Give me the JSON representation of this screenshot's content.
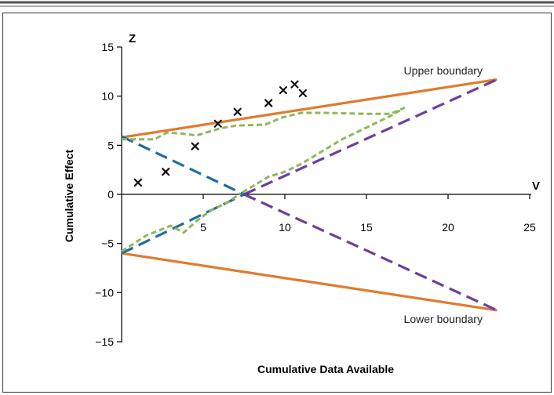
{
  "chart_data": {
    "type": "line",
    "title": "",
    "xlabel": "Cumulative Data Available",
    "ylabel": "Cumulative Effect",
    "x_axis_letter": "V",
    "y_axis_letter": "Z",
    "xlim": [
      0,
      25
    ],
    "ylim": [
      -15,
      15
    ],
    "x_ticks": [
      5,
      10,
      15,
      20,
      25
    ],
    "y_ticks": [
      15,
      10,
      5,
      0,
      -5,
      -10,
      -15
    ],
    "x_tick_labels": [
      "5",
      "10",
      "15",
      "20",
      "25"
    ],
    "y_tick_labels": [
      "15",
      "10",
      "5",
      "0",
      "−5",
      "−10",
      "−15"
    ],
    "grid": false,
    "legend": "none",
    "annotations": [
      {
        "text": "Upper boundary",
        "x": 19.7,
        "y": 12.6
      },
      {
        "text": "Lower boundary",
        "x": 19.7,
        "y": -12.7
      }
    ],
    "colors": {
      "boundary": "#e07b2e",
      "blue_dashed": "#1f6e9e",
      "purple_dashed": "#6b3fa0",
      "green_dotted": "#8db85a",
      "marker": "#111111",
      "axis": "#000000",
      "frame": "#555555"
    },
    "series": [
      {
        "style": "solid",
        "color_key": "boundary",
        "x": [
          0,
          23
        ],
        "y": [
          5.8,
          11.7
        ]
      },
      {
        "style": "solid",
        "color_key": "boundary",
        "x": [
          0,
          23
        ],
        "y": [
          -6.0,
          -11.8
        ]
      },
      {
        "style": "dashed",
        "color_key": "blue_dashed",
        "x": [
          0,
          7.5
        ],
        "y": [
          5.9,
          0
        ]
      },
      {
        "style": "dashed",
        "color_key": "blue_dashed",
        "x": [
          0,
          7.5
        ],
        "y": [
          -6.0,
          0
        ]
      },
      {
        "style": "dashed",
        "color_key": "purple_dashed",
        "x": [
          7.5,
          23
        ],
        "y": [
          0,
          11.7
        ]
      },
      {
        "style": "dashed",
        "color_key": "purple_dashed",
        "x": [
          7.5,
          23
        ],
        "y": [
          0,
          -11.8
        ]
      },
      {
        "style": "dotted",
        "color_key": "green_dotted",
        "x": [
          0,
          2.0,
          2.8,
          3.6,
          4.6,
          6.0,
          7.0,
          8.8,
          9.8,
          11.0,
          12.5,
          15.0,
          16.5,
          17.3,
          16.5,
          13.5,
          11.0,
          10.0,
          9.0,
          8.0,
          7.3
        ],
        "y": [
          5.6,
          5.6,
          6.3,
          6.2,
          6.0,
          6.7,
          7.0,
          7.1,
          7.8,
          8.3,
          8.3,
          8.2,
          8.2,
          8.8,
          8.0,
          5.6,
          3.1,
          2.3,
          1.8,
          0.8,
          0.1
        ]
      },
      {
        "style": "dotted",
        "color_key": "green_dotted",
        "x": [
          0,
          1.5,
          3.0,
          3.8,
          4.6,
          5.5,
          6.5,
          7.3
        ],
        "y": [
          -5.8,
          -4.2,
          -3.2,
          -3.9,
          -2.7,
          -1.6,
          -0.8,
          0.1
        ]
      }
    ],
    "points": {
      "marker": "x",
      "x": [
        1.0,
        2.7,
        4.5,
        5.9,
        7.1,
        9.0,
        9.9,
        10.6,
        11.1
      ],
      "y": [
        1.2,
        2.3,
        4.9,
        7.2,
        8.4,
        9.3,
        10.6,
        11.2,
        10.3
      ]
    }
  }
}
